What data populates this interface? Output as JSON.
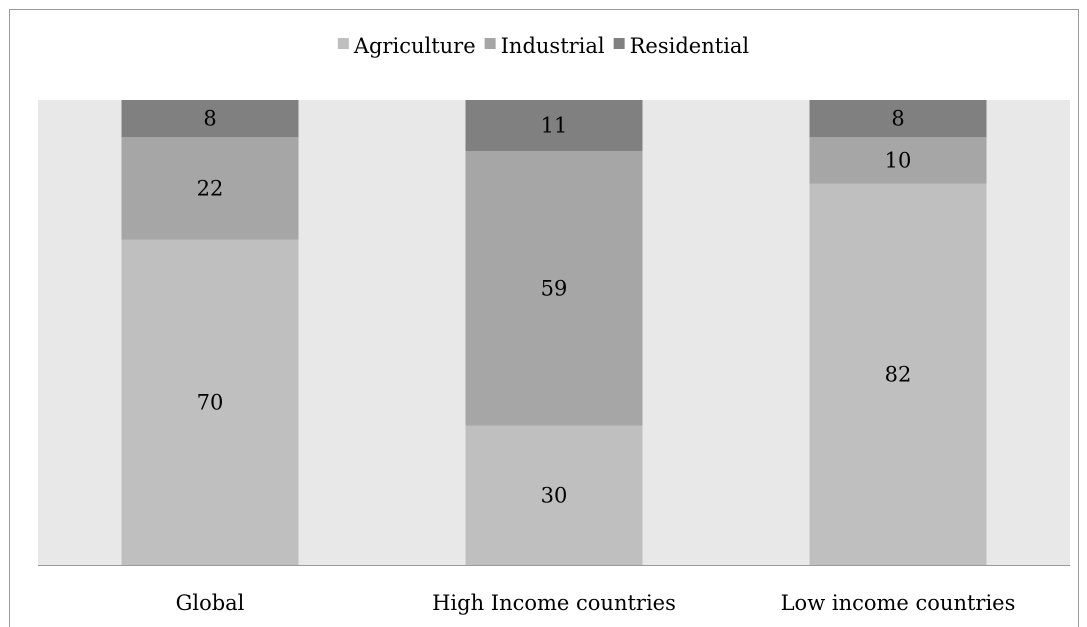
{
  "chart_data": {
    "type": "bar",
    "stacked": true,
    "categories": [
      "Global",
      "High Income countries",
      "Low income countries"
    ],
    "series": [
      {
        "name": "Agriculture",
        "values": [
          70,
          30,
          82
        ],
        "color": "#bfbfbf"
      },
      {
        "name": "Industrial",
        "values": [
          22,
          59,
          10
        ],
        "color": "#a6a6a6"
      },
      {
        "name": "Residential",
        "values": [
          8,
          11,
          8
        ],
        "color": "#808080"
      }
    ],
    "ylim": [
      0,
      100
    ],
    "grid": false,
    "legend": "top-center",
    "plot_background": "#e8e8e8",
    "axis_color": "#9a9a9a"
  }
}
